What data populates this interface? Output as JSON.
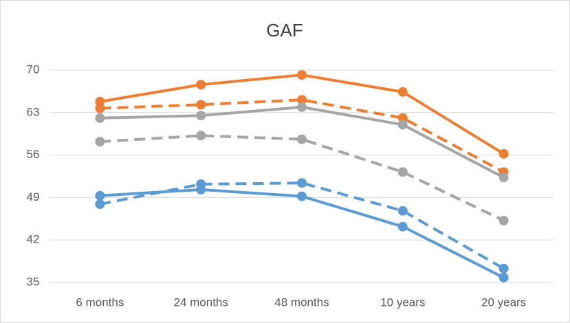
{
  "chart_data": {
    "type": "line",
    "title": "GAF",
    "categories": [
      "6 months",
      "24 months",
      "48 months",
      "10 years",
      "20 years"
    ],
    "series": [
      {
        "color": "#ED7D31",
        "dashed": false,
        "values": [
          64.8,
          67.6,
          69.2,
          66.4,
          56.2
        ]
      },
      {
        "color": "#ED7D31",
        "dashed": true,
        "values": [
          63.7,
          64.3,
          65.1,
          62.1,
          53.2
        ]
      },
      {
        "color": "#A5A5A5",
        "dashed": false,
        "values": [
          62.1,
          62.5,
          63.9,
          61.0,
          52.3
        ]
      },
      {
        "color": "#A5A5A5",
        "dashed": true,
        "values": [
          58.2,
          59.2,
          58.6,
          53.2,
          45.2
        ]
      },
      {
        "color": "#5B9BD5",
        "dashed": false,
        "values": [
          49.3,
          50.3,
          49.2,
          44.2,
          35.8
        ]
      },
      {
        "color": "#5B9BD5",
        "dashed": true,
        "values": [
          47.9,
          51.2,
          51.4,
          46.8,
          37.3
        ]
      }
    ],
    "ylim": [
      35,
      70
    ],
    "yticks": [
      35,
      42,
      49,
      56,
      63,
      70
    ],
    "grid": true
  }
}
